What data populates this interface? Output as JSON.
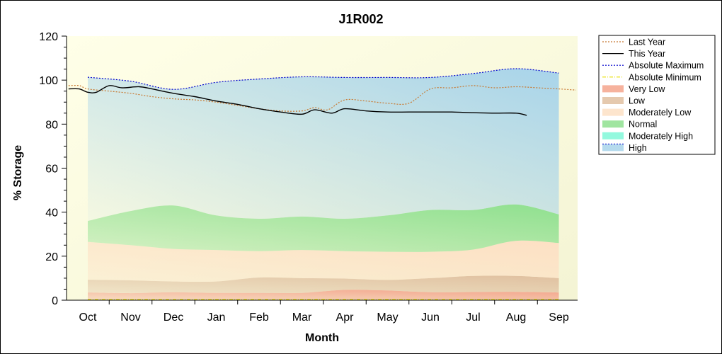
{
  "chart_data": {
    "type": "area",
    "title": "J1R002",
    "xlabel": "Month",
    "ylabel": "% Storage",
    "ylim": [
      0,
      120
    ],
    "yticks": [
      0,
      20,
      40,
      60,
      80,
      100,
      120
    ],
    "categories": [
      "Oct",
      "Nov",
      "Dec",
      "Jan",
      "Feb",
      "Mar",
      "Apr",
      "May",
      "Jun",
      "Jul",
      "Aug",
      "Sep"
    ],
    "grid": false,
    "legend_placement": "right",
    "bands": [
      {
        "name": "Very Low",
        "color": "#f4a48c",
        "lower": [
          0.3,
          0.3,
          0.3,
          0.3,
          0.3,
          0.3,
          0.3,
          0.3,
          0.3,
          0.3,
          0.3,
          0.3
        ],
        "upper": [
          3.5,
          3.2,
          3.6,
          3.3,
          3.3,
          3.3,
          4.7,
          4.4,
          3.6,
          3.7,
          3.8,
          3.5
        ]
      },
      {
        "name": "Low",
        "color": "#e0c0a0",
        "lower": [
          3.5,
          3.2,
          3.6,
          3.3,
          3.3,
          3.3,
          4.7,
          4.4,
          3.6,
          3.7,
          3.8,
          3.5
        ],
        "upper": [
          9.3,
          9.0,
          8.5,
          8.5,
          10.3,
          10.0,
          9.8,
          9.2,
          10.0,
          11.0,
          11.0,
          10.0
        ]
      },
      {
        "name": "Moderately Low",
        "color": "#fde0c4",
        "lower": [
          9.3,
          9.0,
          8.5,
          8.5,
          10.3,
          10.0,
          9.8,
          9.2,
          10.0,
          11.0,
          11.0,
          10.0
        ],
        "upper": [
          26.5,
          25.0,
          23.3,
          22.8,
          22.3,
          22.8,
          22.3,
          22.0,
          22.0,
          23.0,
          27.0,
          26.0
        ]
      },
      {
        "name": "Normal",
        "color": "#8fe08f",
        "lower": [
          26.5,
          25.0,
          23.3,
          22.8,
          22.3,
          22.8,
          22.3,
          22.0,
          22.0,
          23.0,
          27.0,
          26.0
        ],
        "upper": [
          36.0,
          40.5,
          43.0,
          38.5,
          37.0,
          38.0,
          37.0,
          38.5,
          41.0,
          41.0,
          43.5,
          39.0
        ]
      },
      {
        "name": "Moderately High",
        "color": "#80f8d8",
        "lower": [
          36.0,
          40.5,
          43.0,
          38.5,
          37.0,
          38.0,
          37.0,
          38.5,
          41.0,
          41.0,
          43.5,
          39.0
        ],
        "upper": [
          101.3,
          99.5,
          95.8,
          99.0,
          100.5,
          101.5,
          101.2,
          101.2,
          101.2,
          103.0,
          105.2,
          103.2
        ]
      },
      {
        "name": "High",
        "color": "#a8d4ea",
        "lower": [
          36.0,
          40.5,
          43.0,
          38.5,
          37.0,
          38.0,
          37.0,
          38.5,
          41.0,
          41.0,
          43.5,
          39.0
        ],
        "upper": [
          101.3,
          99.5,
          95.8,
          99.0,
          100.5,
          101.5,
          101.2,
          101.2,
          101.2,
          103.0,
          105.2,
          103.2
        ]
      }
    ],
    "series": [
      {
        "name": "Last Year",
        "style": "dotted",
        "color": "#c87830",
        "x": [
          -0.45,
          -0.2,
          0.0,
          0.5,
          1.0,
          1.5,
          2.0,
          2.5,
          3.0,
          3.5,
          4.0,
          4.5,
          5.0,
          5.3,
          5.6,
          6.0,
          6.5,
          7.0,
          7.5,
          8.0,
          8.5,
          9.0,
          9.5,
          10.0,
          10.5,
          11.0,
          11.4
        ],
        "y": [
          97.5,
          97.5,
          96.0,
          95.0,
          94.0,
          92.5,
          91.5,
          91.0,
          90.0,
          88.5,
          87.0,
          86.0,
          86.0,
          87.5,
          86.5,
          91.0,
          90.5,
          89.5,
          89.5,
          96.0,
          96.5,
          97.5,
          96.5,
          97.0,
          96.5,
          96.0,
          95.5
        ]
      },
      {
        "name": "This Year",
        "style": "solid",
        "color": "#000000",
        "x": [
          -0.45,
          -0.2,
          0.0,
          0.2,
          0.5,
          0.8,
          1.2,
          1.5,
          2.0,
          2.5,
          3.0,
          3.5,
          4.0,
          4.5,
          5.0,
          5.3,
          5.7,
          6.0,
          6.5,
          7.0,
          7.5,
          8.0,
          8.5,
          9.0,
          9.5,
          10.0,
          10.25
        ],
        "y": [
          96.0,
          96.0,
          94.5,
          94.5,
          97.5,
          96.5,
          97.0,
          96.0,
          94.0,
          92.5,
          90.5,
          89.0,
          87.0,
          85.5,
          84.5,
          86.5,
          85.0,
          87.0,
          86.0,
          85.5,
          85.5,
          85.5,
          85.5,
          85.2,
          85.0,
          85.0,
          84.0
        ]
      },
      {
        "name": "Absolute Maximum",
        "style": "dotted",
        "color": "#0000cc",
        "x": [
          0,
          1,
          2,
          3,
          4,
          5,
          6,
          7,
          8,
          9,
          10,
          11
        ],
        "y": [
          101.3,
          99.5,
          95.8,
          99.0,
          100.5,
          101.5,
          101.2,
          101.2,
          101.2,
          103.0,
          105.2,
          103.2
        ]
      },
      {
        "name": "Absolute Minimum",
        "style": "dashdot",
        "color": "#e8e000",
        "x": [
          0,
          1,
          2,
          3,
          4,
          5,
          6,
          7,
          8,
          9,
          10,
          11
        ],
        "y": [
          0.3,
          0.3,
          0.3,
          0.3,
          0.3,
          0.3,
          0.3,
          0.3,
          0.3,
          0.3,
          0.3,
          0.3
        ]
      }
    ],
    "legend": [
      "Last Year",
      "This Year",
      "Absolute Maximum",
      "Absolute Minimum",
      "Very Low",
      "Low",
      "Moderately Low",
      "Normal",
      "Moderately High",
      "High"
    ]
  }
}
